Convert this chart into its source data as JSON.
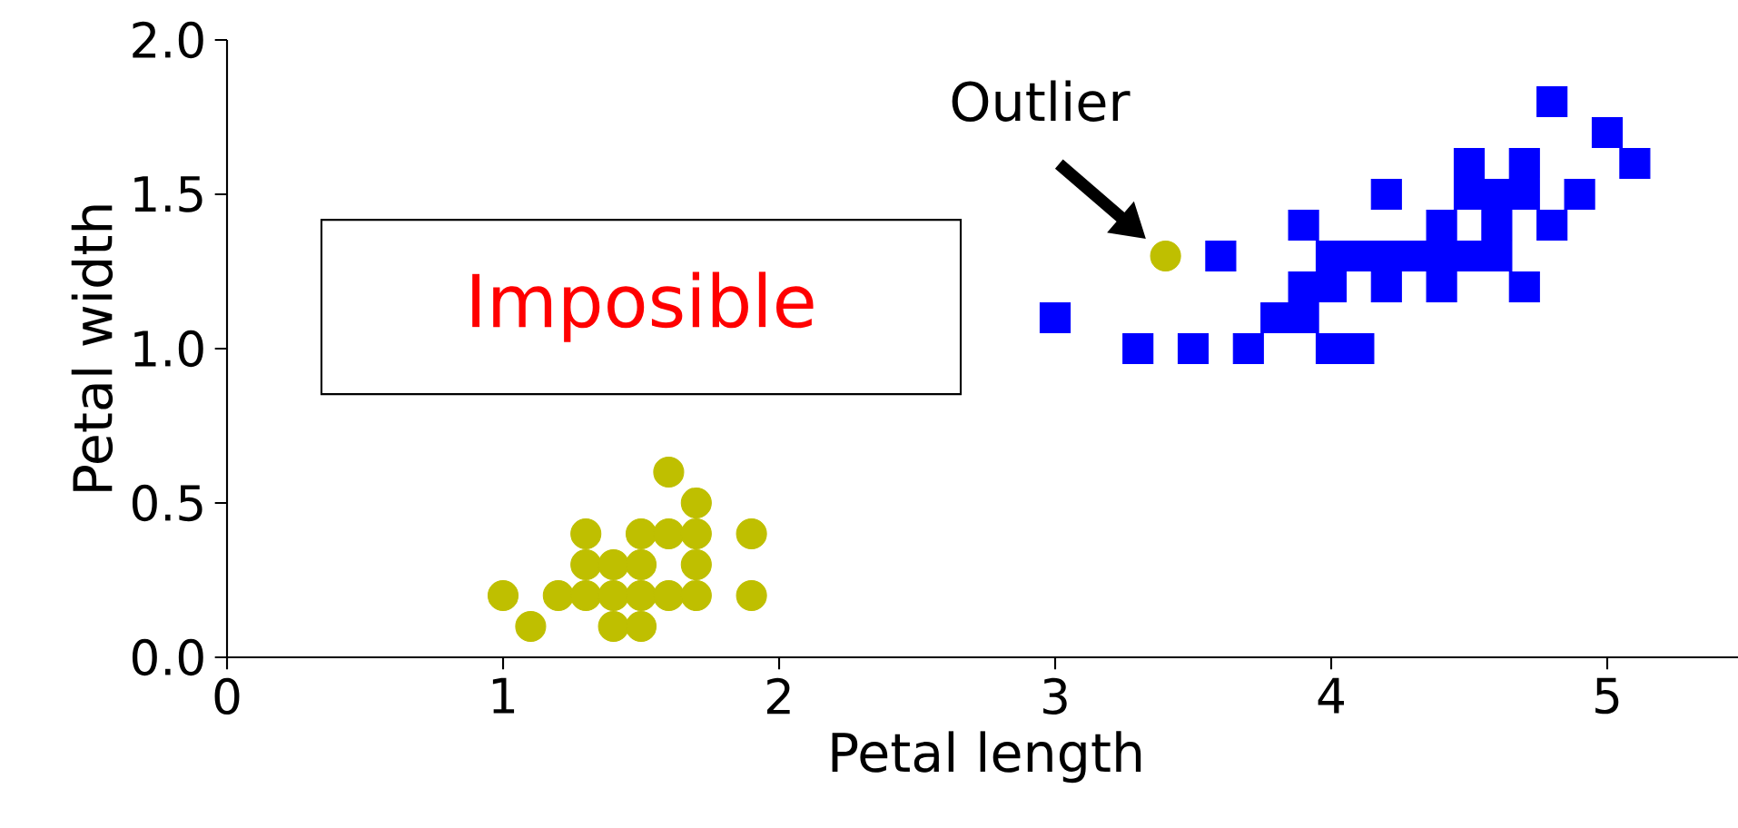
{
  "chart_data": {
    "type": "scatter",
    "xlabel": "Petal length",
    "ylabel": "Petal width",
    "xlim": [
      0,
      5.5
    ],
    "ylim": [
      0,
      2.0
    ],
    "xticks": [
      0,
      1,
      2,
      3,
      4,
      5
    ],
    "yticks": [
      {
        "value": 0,
        "label": "0.0"
      },
      0.5,
      {
        "value": 1,
        "label": "1.0"
      },
      1.5,
      {
        "value": 2,
        "label": "2.0"
      }
    ],
    "series": [
      {
        "color": "#bfbf00",
        "marker": "circle",
        "x": [
          1.0,
          1.1,
          1.2,
          1.3,
          1.3,
          1.3,
          1.4,
          1.4,
          1.4,
          1.5,
          1.5,
          1.5,
          1.5,
          1.6,
          1.6,
          1.6,
          1.7,
          1.7,
          1.7,
          1.7,
          1.9,
          1.9,
          3.4
        ],
        "values": [
          0.2,
          0.1,
          0.2,
          0.2,
          0.3,
          0.4,
          0.1,
          0.2,
          0.3,
          0.1,
          0.2,
          0.3,
          0.4,
          0.2,
          0.4,
          0.6,
          0.2,
          0.3,
          0.4,
          0.5,
          0.2,
          0.4,
          1.3
        ]
      },
      {
        "color": "#0000ff",
        "marker": "square",
        "x": [
          3.0,
          3.3,
          3.5,
          3.6,
          3.7,
          3.8,
          3.9,
          3.9,
          3.9,
          4.0,
          4.1,
          4.0,
          4.1,
          4.2,
          4.3,
          4.4,
          4.5,
          4.6,
          4.0,
          4.2,
          4.4,
          4.7,
          4.4,
          4.6,
          4.8,
          4.2,
          4.5,
          4.6,
          4.7,
          4.9,
          4.5,
          4.7,
          5.1,
          5.0,
          4.8
        ],
        "values": [
          1.1,
          1.0,
          1.0,
          1.3,
          1.0,
          1.1,
          1.1,
          1.2,
          1.4,
          1.0,
          1.0,
          1.3,
          1.3,
          1.3,
          1.3,
          1.3,
          1.3,
          1.3,
          1.2,
          1.2,
          1.2,
          1.2,
          1.4,
          1.4,
          1.4,
          1.5,
          1.5,
          1.5,
          1.5,
          1.5,
          1.6,
          1.6,
          1.6,
          1.7,
          1.8
        ]
      }
    ],
    "annotations": [
      "Imposible",
      {
        "text": "Outlier",
        "x": 3.4,
        "y": 1.3
      }
    ]
  }
}
